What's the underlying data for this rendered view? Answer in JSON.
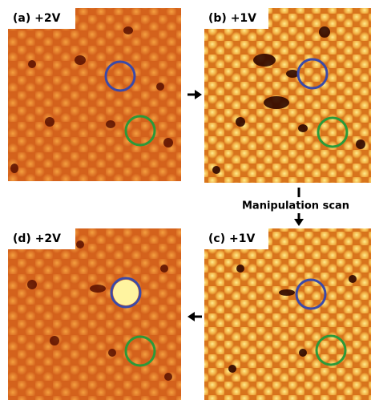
{
  "panels": [
    {
      "label": "(a) +2V"
    },
    {
      "label": "(b) +1V"
    },
    {
      "label": "(c) +1V"
    },
    {
      "label": "(d) +2V"
    }
  ],
  "arrow_label": "Manipulation scan"
}
